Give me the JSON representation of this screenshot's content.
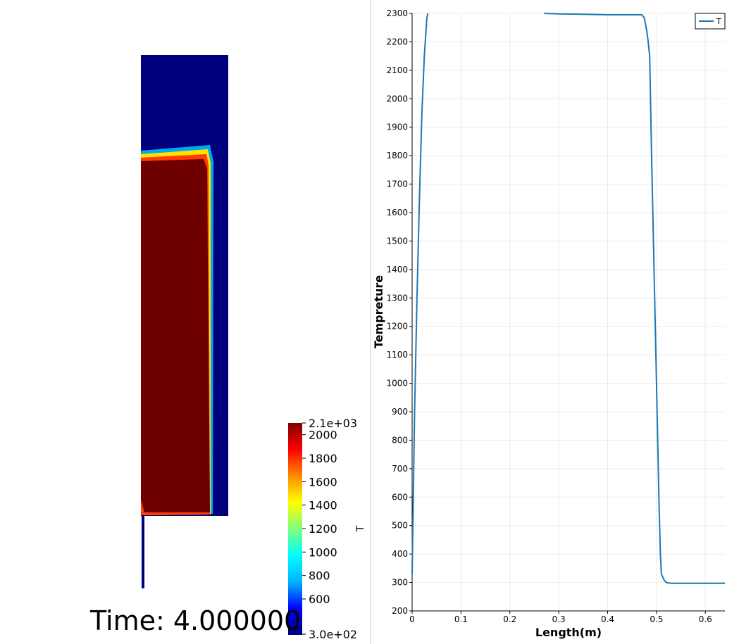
{
  "time_label": "Time: 4.000000",
  "colorbar": {
    "title": "T",
    "min_label": "3.0e+02",
    "max_label": "2.1e+03",
    "min": 300,
    "max": 2100,
    "ticks": [
      "600",
      "800",
      "1000",
      "1200",
      "1400",
      "1600",
      "1800",
      "2000"
    ],
    "tick_values": [
      600,
      800,
      1000,
      1200,
      1400,
      1600,
      1800,
      2000
    ],
    "colormap": [
      "#00007f",
      "#0000ff",
      "#00b4ff",
      "#00ffff",
      "#7fff7f",
      "#ffff00",
      "#ff8c00",
      "#ff0000",
      "#7f0000"
    ]
  },
  "field": {
    "hot_color": "#6f0000",
    "cold_color": "#00007f"
  },
  "chart_data": {
    "type": "line",
    "xlabel": "Length(m)",
    "ylabel": "Tempreture",
    "xlim": [
      0,
      0.64
    ],
    "ylim": [
      200,
      2300
    ],
    "x_ticks": [
      "0",
      "0.1",
      "0.2",
      "0.3",
      "0.4",
      "0.5",
      "0.6"
    ],
    "x_tick_values": [
      0,
      0.1,
      0.2,
      0.3,
      0.4,
      0.5,
      0.6
    ],
    "y_ticks": [
      "200",
      "300",
      "400",
      "500",
      "600",
      "700",
      "800",
      "900",
      "1000",
      "1100",
      "1200",
      "1300",
      "1400",
      "1500",
      "1600",
      "1700",
      "1800",
      "1900",
      "2000",
      "2100",
      "2200",
      "2300"
    ],
    "y_tick_values": [
      200,
      300,
      400,
      500,
      600,
      700,
      800,
      900,
      1000,
      1100,
      1200,
      1300,
      1400,
      1500,
      1600,
      1700,
      1800,
      1900,
      2000,
      2100,
      2200,
      2300
    ],
    "grid": true,
    "legend_position": "top-right",
    "series": [
      {
        "name": "T",
        "color": "#1f77b4",
        "segments": [
          {
            "x": [
              0.0,
              0.002,
              0.005,
              0.01,
              0.015,
              0.02,
              0.025,
              0.03,
              0.032
            ],
            "y": [
              330,
              550,
              900,
              1300,
              1650,
              1950,
              2150,
              2280,
              2300
            ]
          },
          {
            "x": [
              0.27,
              0.3,
              0.35,
              0.4,
              0.45,
              0.47,
              0.475,
              0.48,
              0.483,
              0.486,
              0.49,
              0.5,
              0.505,
              0.508,
              0.51,
              0.515,
              0.52,
              0.53,
              0.55,
              0.6,
              0.64
            ],
            "y": [
              2300,
              2298,
              2297,
              2295,
              2295,
              2295,
              2285,
              2240,
              2200,
              2150,
              1800,
              1000,
              600,
              400,
              330,
              310,
              300,
              297,
              297,
              297,
              297
            ]
          }
        ]
      }
    ]
  }
}
